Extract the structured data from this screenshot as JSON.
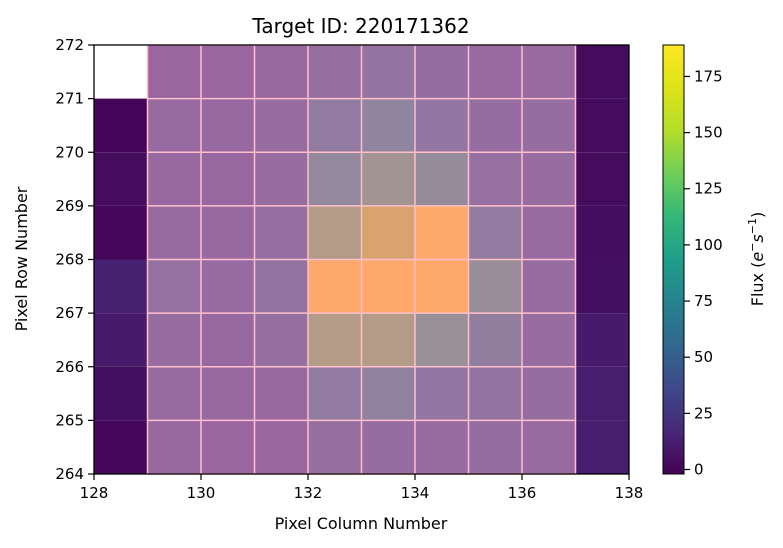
{
  "chart_data": {
    "type": "heatmap",
    "title": "Target ID: 220171362",
    "xlabel": "Pixel Column Number",
    "ylabel": "Pixel Row Number",
    "xlim": [
      128,
      138
    ],
    "ylim": [
      264,
      272
    ],
    "xticks": [
      128,
      130,
      132,
      134,
      136,
      138
    ],
    "yticks": [
      264,
      265,
      266,
      267,
      268,
      269,
      270,
      271,
      272
    ],
    "columns": [
      128,
      129,
      130,
      131,
      132,
      133,
      134,
      135,
      136,
      137
    ],
    "rows": [
      271,
      270,
      269,
      268,
      267,
      266,
      265,
      264
    ],
    "values": [
      [
        null,
        52,
        52,
        54,
        64,
        72,
        62,
        57,
        57,
        3
      ],
      [
        0,
        58,
        55,
        60,
        82,
        95,
        75,
        62,
        62,
        3
      ],
      [
        3,
        56,
        53,
        60,
        100,
        118,
        104,
        66,
        60,
        3
      ],
      [
        1,
        58,
        56,
        65,
        130,
        150,
        190,
        82,
        58,
        4
      ],
      [
        14,
        68,
        58,
        72,
        190,
        190,
        190,
        108,
        60,
        5
      ],
      [
        10,
        60,
        56,
        64,
        130,
        130,
        110,
        85,
        60,
        10
      ],
      [
        5,
        58,
        56,
        54,
        82,
        90,
        75,
        72,
        62,
        12
      ],
      [
        1,
        55,
        52,
        52,
        64,
        62,
        60,
        62,
        58,
        12
      ]
    ],
    "masked_cells_color": "#ffffff",
    "overlay_color": "#ff69b4",
    "overlay_opacity": 0.5,
    "cell_border_color": "#ffc0cb",
    "colorbar": {
      "label": "Flux (e⁻s⁻¹)",
      "label_parts": [
        "Flux (",
        "e",
        "−",
        "s",
        "−1",
        ")"
      ],
      "colormap": "viridis",
      "range": [
        -2,
        189
      ],
      "ticks": [
        0,
        25,
        50,
        75,
        100,
        125,
        150,
        175
      ]
    },
    "grid": false,
    "legend": "none"
  }
}
